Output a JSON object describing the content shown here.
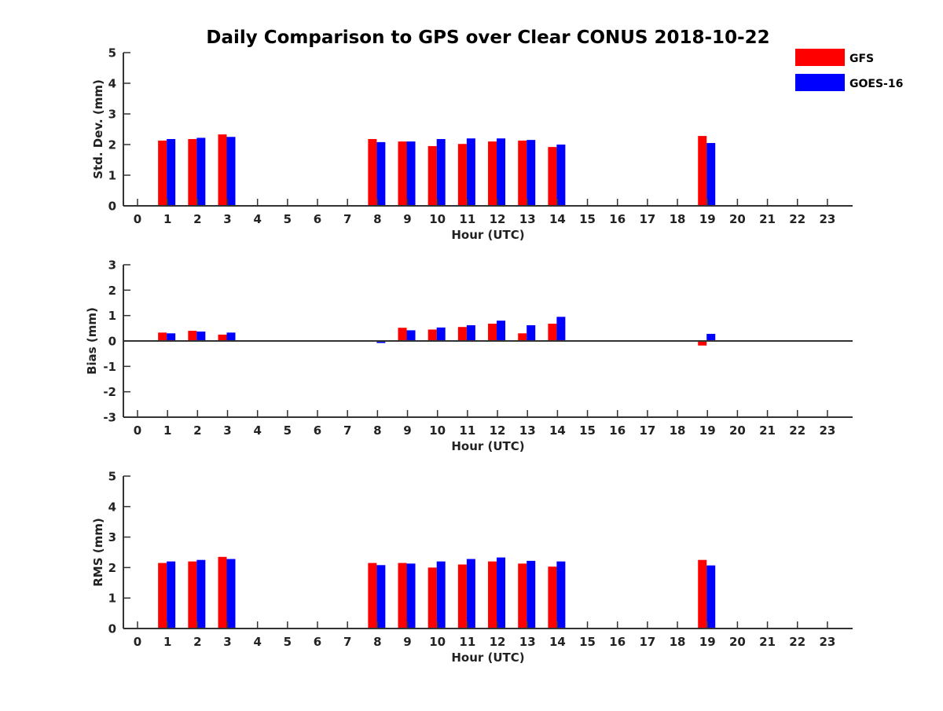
{
  "chart_data": [
    {
      "type": "bar",
      "title": "Daily Comparison to GPS over Clear CONUS 2018-10-22",
      "xlabel": "Hour (UTC)",
      "ylabel": "Std. Dev. (mm)",
      "ylim": [
        0,
        5
      ],
      "yticks": [
        "0",
        "1",
        "2",
        "3",
        "4",
        "5"
      ],
      "categories": [
        "0",
        "1",
        "2",
        "3",
        "4",
        "5",
        "6",
        "7",
        "8",
        "9",
        "10",
        "11",
        "12",
        "13",
        "14",
        "15",
        "16",
        "17",
        "18",
        "19",
        "20",
        "21",
        "22",
        "23"
      ],
      "series": [
        {
          "name": "GFS",
          "color": "#ff0000",
          "values": [
            null,
            2.13,
            2.18,
            2.33,
            null,
            null,
            null,
            null,
            2.18,
            2.1,
            1.95,
            2.02,
            2.1,
            2.13,
            1.92,
            null,
            null,
            null,
            null,
            2.28,
            null,
            null,
            null,
            null
          ]
        },
        {
          "name": "GOES-16",
          "color": "#0000ff",
          "values": [
            null,
            2.18,
            2.22,
            2.25,
            null,
            null,
            null,
            null,
            2.08,
            2.1,
            2.18,
            2.2,
            2.2,
            2.15,
            2.0,
            null,
            null,
            null,
            null,
            2.05,
            null,
            null,
            null,
            null
          ]
        }
      ]
    },
    {
      "type": "bar",
      "title": "",
      "xlabel": "Hour (UTC)",
      "ylabel": "Bias (mm)",
      "ylim": [
        -3,
        3
      ],
      "yticks": [
        "-3",
        "-2",
        "-1",
        "0",
        "1",
        "2",
        "3"
      ],
      "categories": [
        "0",
        "1",
        "2",
        "3",
        "4",
        "5",
        "6",
        "7",
        "8",
        "9",
        "10",
        "11",
        "12",
        "13",
        "14",
        "15",
        "16",
        "17",
        "18",
        "19",
        "20",
        "21",
        "22",
        "23"
      ],
      "series": [
        {
          "name": "GFS",
          "color": "#ff0000",
          "values": [
            null,
            0.33,
            0.4,
            0.25,
            null,
            null,
            null,
            null,
            -0.02,
            0.52,
            0.45,
            0.55,
            0.68,
            0.3,
            0.68,
            null,
            null,
            null,
            null,
            -0.18,
            null,
            null,
            null,
            null
          ]
        },
        {
          "name": "GOES-16",
          "color": "#0000ff",
          "values": [
            null,
            0.3,
            0.37,
            0.33,
            null,
            null,
            null,
            null,
            -0.08,
            0.42,
            0.53,
            0.62,
            0.8,
            0.62,
            0.95,
            null,
            null,
            null,
            null,
            0.28,
            null,
            null,
            null,
            null
          ]
        }
      ]
    },
    {
      "type": "bar",
      "title": "",
      "xlabel": "Hour (UTC)",
      "ylabel": "RMS (mm)",
      "ylim": [
        0,
        5
      ],
      "yticks": [
        "0",
        "1",
        "2",
        "3",
        "4",
        "5"
      ],
      "categories": [
        "0",
        "1",
        "2",
        "3",
        "4",
        "5",
        "6",
        "7",
        "8",
        "9",
        "10",
        "11",
        "12",
        "13",
        "14",
        "15",
        "16",
        "17",
        "18",
        "19",
        "20",
        "21",
        "22",
        "23"
      ],
      "series": [
        {
          "name": "GFS",
          "color": "#ff0000",
          "values": [
            null,
            2.15,
            2.2,
            2.35,
            null,
            null,
            null,
            null,
            2.15,
            2.15,
            2.0,
            2.1,
            2.2,
            2.13,
            2.03,
            null,
            null,
            null,
            null,
            2.25,
            null,
            null,
            null,
            null
          ]
        },
        {
          "name": "GOES-16",
          "color": "#0000ff",
          "values": [
            null,
            2.2,
            2.25,
            2.28,
            null,
            null,
            null,
            null,
            2.08,
            2.13,
            2.2,
            2.28,
            2.33,
            2.22,
            2.2,
            null,
            null,
            null,
            null,
            2.07,
            null,
            null,
            null,
            null
          ]
        }
      ]
    }
  ],
  "legend": [
    {
      "label": "GFS",
      "color": "#ff0000"
    },
    {
      "label": "GOES-16",
      "color": "#0000ff"
    }
  ]
}
